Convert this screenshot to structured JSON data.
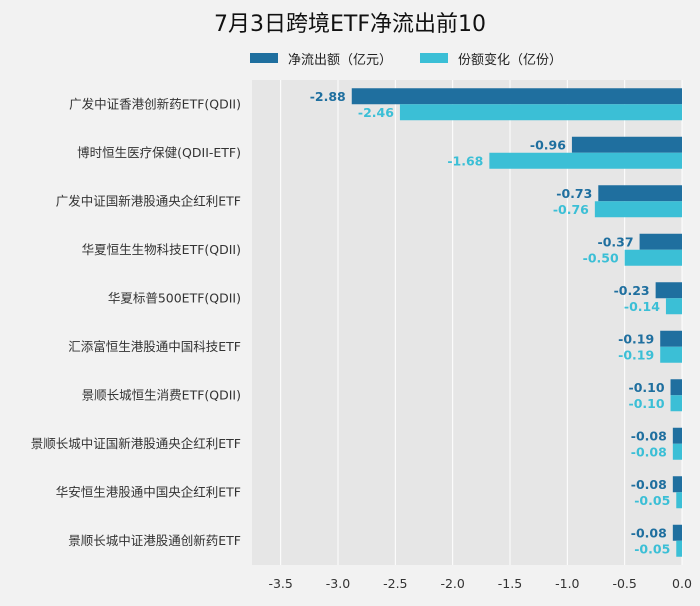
{
  "chart_data": {
    "type": "bar",
    "orientation": "horizontal",
    "title": "7月3日跨境ETF净流出前10",
    "categories": [
      "广发中证香港创新药ETF(QDII)",
      "博时恒生医疗保健(QDII-ETF)",
      "广发中证国新港股通央企红利ETF",
      "华夏恒生生物科技ETF(QDII)",
      "华夏标普500ETF(QDII)",
      "汇添富恒生港股通中国科技ETF",
      "景顺长城恒生消费ETF(QDII)",
      "景顺长城中证国新港股通央企红利ETF",
      "华安恒生港股通中国央企红利ETF",
      "景顺长城中证港股通创新药ETF"
    ],
    "series": [
      {
        "name": "净流出额（亿元）",
        "color": "#1f6f9f",
        "values": [
          -2.88,
          -0.96,
          -0.73,
          -0.37,
          -0.23,
          -0.19,
          -0.1,
          -0.08,
          -0.08,
          -0.08
        ],
        "labels": [
          "-2.88",
          "-0.96",
          "-0.73",
          "-0.37",
          "-0.23",
          "-0.19",
          "-0.10",
          "-0.08",
          "-0.08",
          "-0.08"
        ]
      },
      {
        "name": "份额变化（亿份）",
        "color": "#3bbfd6",
        "values": [
          -2.46,
          -1.68,
          -0.76,
          -0.5,
          -0.14,
          -0.19,
          -0.1,
          -0.08,
          -0.05,
          -0.05
        ],
        "labels": [
          "-2.46",
          "-1.68",
          "-0.76",
          "-0.50",
          "-0.14",
          "-0.19",
          "-0.10",
          "-0.08",
          "-0.05",
          "-0.05"
        ]
      }
    ],
    "xlim": [
      -3.75,
      0
    ],
    "xticks": [
      -3.5,
      -3.0,
      -2.5,
      -2.0,
      -1.5,
      -1.0,
      -0.5,
      0.0
    ],
    "xtick_labels": [
      "-3.5",
      "-3.0",
      "-2.5",
      "-2.0",
      "-1.5",
      "-1.0",
      "-0.5",
      "0.0"
    ],
    "grid": true,
    "legend_position": "top"
  }
}
